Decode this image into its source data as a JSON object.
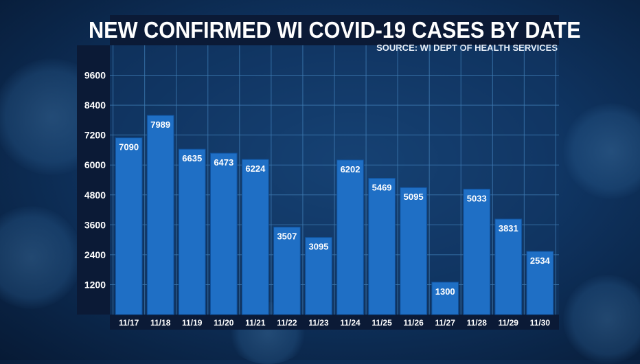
{
  "chart_data": {
    "type": "bar",
    "title": "NEW CONFIRMED WI COVID-19 CASES BY DATE",
    "subtitle": "SOURCE: WI DEPT OF HEALTH SERVICES",
    "xlabel": "",
    "ylabel": "",
    "categories": [
      "11/17",
      "11/18",
      "11/19",
      "11/20",
      "11/21",
      "11/22",
      "11/23",
      "11/24",
      "11/25",
      "11/26",
      "11/27",
      "11/28",
      "11/29",
      "11/30"
    ],
    "values": [
      7090,
      7989,
      6635,
      6473,
      6224,
      3507,
      3095,
      6202,
      5469,
      5095,
      1300,
      5033,
      3831,
      2534
    ],
    "yticks": [
      1200,
      2400,
      3600,
      4800,
      6000,
      7200,
      8400,
      9600
    ],
    "ylim": [
      0,
      10800
    ],
    "grid": true,
    "legend": "none",
    "colors": {
      "bar": "#1f6fc5",
      "bar_edge": "#0f4f98",
      "grid": "#3f7cb4",
      "text": "#ffffff",
      "panel": "#0b1a36"
    }
  }
}
